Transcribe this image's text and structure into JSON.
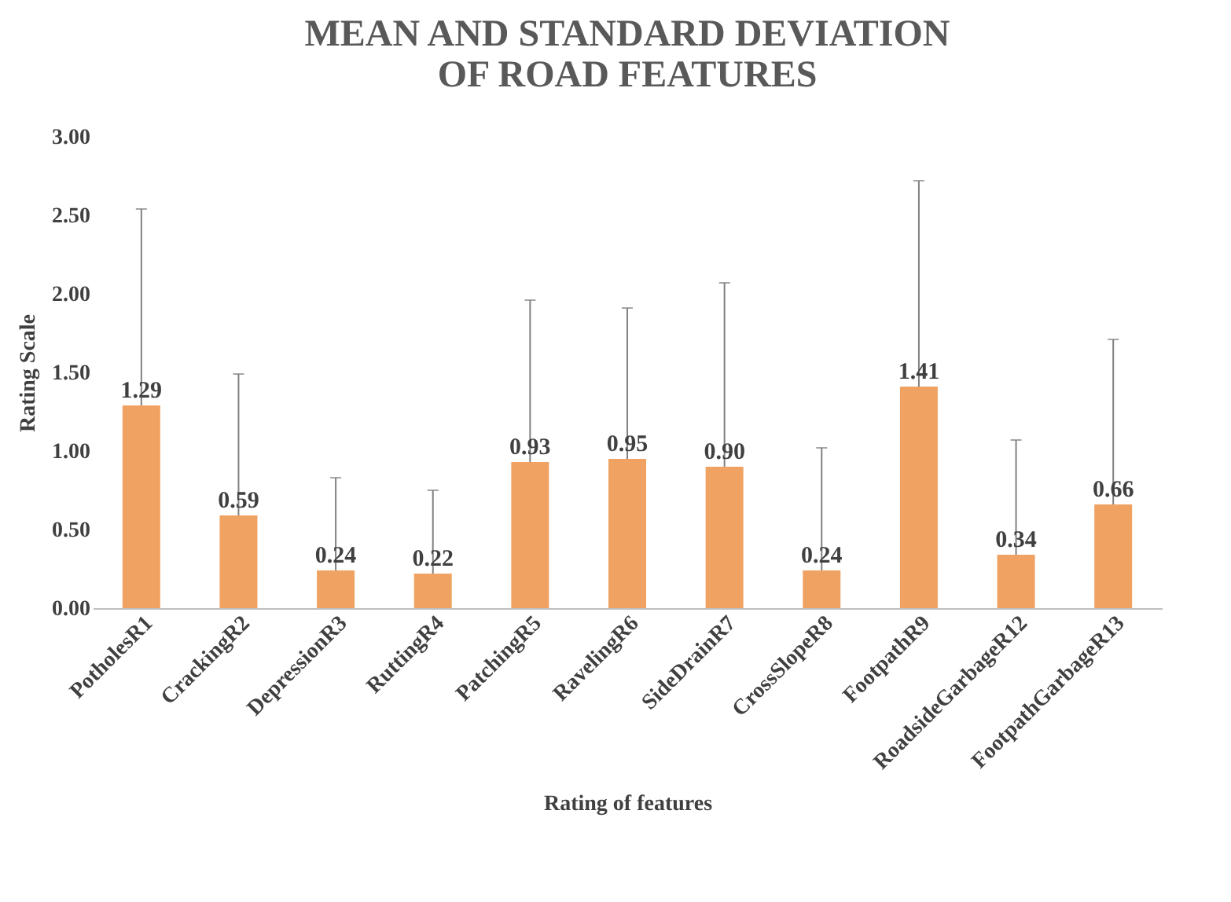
{
  "chart_data": {
    "type": "bar",
    "title": [
      "MEAN AND STANDARD DEVIATION",
      "OF ROAD FEATURES"
    ],
    "xlabel": "Rating of features",
    "ylabel": "Rating Scale",
    "categories": [
      "PotholesR1",
      "CrackingR2",
      "DepressionR3",
      "RuttingR4",
      "PatchingR5",
      "RavelingR6",
      "SideDrainR7",
      "CrossSlopeR8",
      "FootpathR9",
      "RoadsideGarbageR12",
      "FootpathGarbageR13"
    ],
    "values": [
      1.29,
      0.59,
      0.24,
      0.22,
      0.93,
      0.95,
      0.9,
      0.24,
      1.41,
      0.34,
      0.66
    ],
    "errors": [
      [
        1.29,
        2.54
      ],
      [
        0.59,
        1.49
      ],
      [
        0.24,
        0.83
      ],
      [
        0.22,
        0.75
      ],
      [
        0.93,
        1.96
      ],
      [
        0.95,
        1.91
      ],
      [
        0.9,
        2.07
      ],
      [
        0.24,
        1.02
      ],
      [
        1.41,
        2.72
      ],
      [
        0.34,
        1.07
      ],
      [
        0.66,
        1.71
      ]
    ],
    "value_labels": [
      "1.29",
      "0.59",
      "0.24",
      "0.22",
      "0.93",
      "0.95",
      "0.90",
      "0.24",
      "1.41",
      "0.34",
      "0.66"
    ],
    "color": "#f0a263",
    "grid": false,
    "ylim": [
      0,
      3
    ],
    "yticks": [
      {
        "value": 0,
        "label": "0.00"
      },
      {
        "value": 0.5,
        "label": "0.50"
      },
      {
        "value": 1,
        "label": "1.00"
      },
      {
        "value": 1.5,
        "label": "1.50"
      },
      {
        "value": 2,
        "label": "2.00"
      },
      {
        "value": 2.5,
        "label": "2.50"
      },
      {
        "value": 3,
        "label": "3.00"
      }
    ]
  }
}
